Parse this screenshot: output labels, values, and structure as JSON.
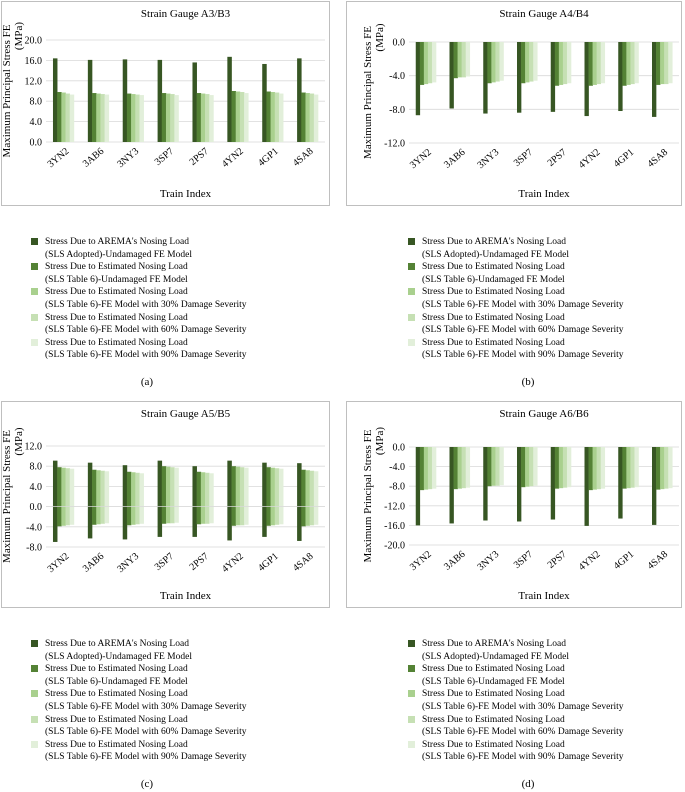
{
  "legend": [
    {
      "line1": "Stress Due to AREMA's Nosing Load",
      "line2": "(SLS Adopted)-Undamaged FE Model",
      "color": "#375623"
    },
    {
      "line1": "Stress Due to Estimated Nosing Load",
      "line2": "(SLS Table 6)-Undamaged FE Model",
      "color": "#548235"
    },
    {
      "line1": "Stress Due to Estimated Nosing Load",
      "line2": "(SLS Table 6)-FE Model with 30% Damage Severity",
      "color": "#a9d08e"
    },
    {
      "line1": "Stress Due to Estimated Nosing Load",
      "line2": "(SLS Table 6)-FE Model with 60% Damage Severity",
      "color": "#c6e0b4"
    },
    {
      "line1": "Stress Due to Estimated Nosing Load",
      "line2": "(SLS Table 6)-FE Model with 90% Damage Severity",
      "color": "#e2efda"
    }
  ],
  "chart_data": [
    {
      "type": "bar",
      "caption": "(a)",
      "title": "Strain Gauge A3/B3",
      "xlabel": "Train Index",
      "ylabel": "Maximum Principal Stress FE (MPa)",
      "ylim": [
        0,
        20
      ],
      "yticks": [
        "0.0",
        "4.0",
        "8.0",
        "12.0",
        "16.0",
        "20.0"
      ],
      "categories": [
        "3YN2",
        "3AB6",
        "3NY3",
        "3SP7",
        "2PS7",
        "4YN2",
        "4GP1",
        "4SA8"
      ],
      "series": [
        {
          "name": "Stress Due to AREMA's Nosing Load (SLS Adopted)-Undamaged FE Model",
          "values": [
            16.4,
            16.1,
            16.2,
            16.1,
            15.6,
            16.7,
            15.3,
            16.4
          ]
        },
        {
          "name": "Stress Due to Estimated Nosing Load (SLS Table 6)-Undamaged FE Model",
          "values": [
            9.8,
            9.6,
            9.5,
            9.6,
            9.6,
            10.0,
            9.9,
            9.7
          ]
        },
        {
          "name": "Stress Due to Estimated Nosing Load (SLS Table 6)-FE Model with 30% Damage Severity",
          "values": [
            9.7,
            9.5,
            9.4,
            9.5,
            9.5,
            9.9,
            9.8,
            9.6
          ]
        },
        {
          "name": "Stress Due to Estimated Nosing Load (SLS Table 6)-FE Model with 60% Damage Severity",
          "values": [
            9.5,
            9.4,
            9.3,
            9.4,
            9.4,
            9.8,
            9.7,
            9.5
          ]
        },
        {
          "name": "Stress Due to Estimated Nosing Load (SLS Table 6)-FE Model with 90% Damage Severity",
          "values": [
            9.3,
            9.3,
            9.2,
            9.2,
            9.2,
            9.6,
            9.5,
            9.3
          ]
        }
      ]
    },
    {
      "type": "bar",
      "caption": "(b)",
      "title": "Strain Gauge A4/B4",
      "xlabel": "Train Index",
      "ylabel": "Maximum Principal Stress FE (MPa)",
      "ylim": [
        -12,
        0
      ],
      "yticks": [
        "-12.0",
        "-8.0",
        "-4.0",
        "0.0"
      ],
      "categories": [
        "3YN2",
        "3AB6",
        "3NY3",
        "3SP7",
        "2PS7",
        "4YN2",
        "4GP1",
        "4SA8"
      ],
      "series": [
        {
          "name": "Stress Due to AREMA's Nosing Load (SLS Adopted)-Undamaged FE Model",
          "values": [
            -8.7,
            -7.9,
            -8.5,
            -8.4,
            -8.3,
            -8.8,
            -8.2,
            -8.9
          ]
        },
        {
          "name": "Stress Due to Estimated Nosing Load (SLS Table 6)-Undamaged FE Model",
          "values": [
            -5.1,
            -4.3,
            -4.9,
            -4.9,
            -5.2,
            -5.2,
            -5.2,
            -5.1
          ]
        },
        {
          "name": "Stress Due to Estimated Nosing Load (SLS Table 6)-FE Model with 30% Damage Severity",
          "values": [
            -5.0,
            -4.2,
            -4.8,
            -4.8,
            -5.1,
            -5.1,
            -5.1,
            -5.0
          ]
        },
        {
          "name": "Stress Due to Estimated Nosing Load (SLS Table 6)-FE Model with 60% Damage Severity",
          "values": [
            -4.9,
            -4.2,
            -4.7,
            -4.7,
            -5.0,
            -5.0,
            -5.0,
            -5.0
          ]
        },
        {
          "name": "Stress Due to Estimated Nosing Load (SLS Table 6)-FE Model with 90% Damage Severity",
          "values": [
            -4.8,
            -4.1,
            -4.6,
            -4.6,
            -4.9,
            -4.9,
            -4.9,
            -4.9
          ]
        }
      ]
    },
    {
      "type": "bar",
      "caption": "(c)",
      "title": "Strain Gauge A5/B5",
      "xlabel": "Train Index",
      "ylabel": "Maximum Principal Stress FE (MPa)",
      "ylim": [
        -8,
        12
      ],
      "yticks": [
        "-8.0",
        "-4.0",
        "0.0",
        "4.0",
        "8.0",
        "12.0"
      ],
      "categories": [
        "3YN2",
        "3AB6",
        "3NY3",
        "3SP7",
        "2PS7",
        "4YN2",
        "4GP1",
        "4SA8"
      ],
      "series": [
        {
          "name": "Stress Due to AREMA's Nosing Load (SLS Adopted)-Undamaged FE Model",
          "values": [
            9.1,
            8.7,
            8.2,
            9.1,
            8.0,
            9.1,
            8.7,
            8.6
          ]
        },
        {
          "name": "Stress Due to Estimated Nosing Load (SLS Table 6)-Undamaged FE Model",
          "values": [
            7.8,
            7.3,
            6.9,
            8.0,
            6.9,
            8.0,
            7.8,
            7.3
          ]
        },
        {
          "name": "Stress Due to Estimated Nosing Load (SLS Table 6)-FE Model with 30% Damage Severity",
          "values": [
            7.7,
            7.2,
            6.8,
            7.9,
            6.8,
            7.9,
            7.7,
            7.2
          ]
        },
        {
          "name": "Stress Due to Estimated Nosing Load (SLS Table 6)-FE Model with 60% Damage Severity",
          "values": [
            7.6,
            7.1,
            6.7,
            7.8,
            6.7,
            7.8,
            7.6,
            7.1
          ]
        },
        {
          "name": "Stress Due to Estimated Nosing Load (SLS Table 6)-FE Model with 90% Damage Severity",
          "values": [
            7.5,
            7.0,
            6.6,
            7.7,
            6.6,
            7.7,
            7.5,
            7.0
          ]
        }
      ],
      "negative_series": [
        {
          "name": "Stress Due to AREMA's Nosing Load (SLS Adopted)-Undamaged FE Model",
          "values": [
            -7.0,
            -6.3,
            -6.5,
            -6.0,
            -6.0,
            -6.7,
            -6.0,
            -6.8
          ]
        },
        {
          "name": "Stress Due to Estimated Nosing Load (SLS Table 6)-Undamaged FE Model",
          "values": [
            -3.9,
            -3.6,
            -3.7,
            -3.4,
            -3.5,
            -3.8,
            -3.8,
            -3.9
          ]
        },
        {
          "name": "Stress Due to Estimated Nosing Load (SLS Table 6)-FE Model with 30% Damage Severity",
          "values": [
            -3.8,
            -3.5,
            -3.6,
            -3.3,
            -3.4,
            -3.7,
            -3.7,
            -3.8
          ]
        },
        {
          "name": "Stress Due to Estimated Nosing Load (SLS Table 6)-FE Model with 60% Damage Severity",
          "values": [
            -3.7,
            -3.4,
            -3.5,
            -3.3,
            -3.4,
            -3.7,
            -3.6,
            -3.7
          ]
        },
        {
          "name": "Stress Due to Estimated Nosing Load (SLS Table 6)-FE Model with 90% Damage Severity",
          "values": [
            -3.6,
            -3.3,
            -3.4,
            -3.2,
            -3.3,
            -3.6,
            -3.5,
            -3.6
          ]
        }
      ]
    },
    {
      "type": "bar",
      "caption": "(d)",
      "title": "Strain Gauge A6/B6",
      "xlabel": "Train Index",
      "ylabel": "Maximum Principal Stress FE (MPa)",
      "ylim": [
        -20,
        0
      ],
      "yticks": [
        "-20.0",
        "-16.0",
        "-12.0",
        "-8.0",
        "-4.0",
        "0.0"
      ],
      "categories": [
        "3YN2",
        "3AB6",
        "3NY3",
        "3SP7",
        "2PS7",
        "4YN2",
        "4GP1",
        "4SA8"
      ],
      "series": [
        {
          "name": "Stress Due to AREMA's Nosing Load (SLS Adopted)-Undamaged FE Model",
          "values": [
            -16.0,
            -15.6,
            -15.0,
            -15.2,
            -14.8,
            -16.1,
            -14.6,
            -15.9
          ]
        },
        {
          "name": "Stress Due to Estimated Nosing Load (SLS Table 6)-Undamaged FE Model",
          "values": [
            -8.8,
            -8.6,
            -8.0,
            -8.2,
            -8.5,
            -8.8,
            -8.5,
            -8.7
          ]
        },
        {
          "name": "Stress Due to Estimated Nosing Load (SLS Table 6)-FE Model with 30% Damage Severity",
          "values": [
            -8.7,
            -8.5,
            -7.9,
            -8.1,
            -8.4,
            -8.7,
            -8.4,
            -8.6
          ]
        },
        {
          "name": "Stress Due to Estimated Nosing Load (SLS Table 6)-FE Model with 60% Damage Severity",
          "values": [
            -8.6,
            -8.4,
            -7.9,
            -8.0,
            -8.3,
            -8.6,
            -8.3,
            -8.5
          ]
        },
        {
          "name": "Stress Due to Estimated Nosing Load (SLS Table 6)-FE Model with 90% Damage Severity",
          "values": [
            -8.5,
            -8.3,
            -7.8,
            -7.9,
            -8.2,
            -8.5,
            -8.2,
            -8.4
          ]
        }
      ]
    }
  ]
}
